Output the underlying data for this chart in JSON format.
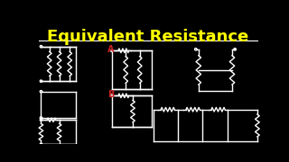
{
  "background_color": "#000000",
  "title": "Equivalent Resistance",
  "title_color": "#FFFF00",
  "title_fontsize": 13,
  "line_color": "#FFFFFF",
  "label_A_color": "#CC2222",
  "label_B_color": "#CC2222",
  "fig_width": 3.2,
  "fig_height": 1.8,
  "dpi": 100
}
